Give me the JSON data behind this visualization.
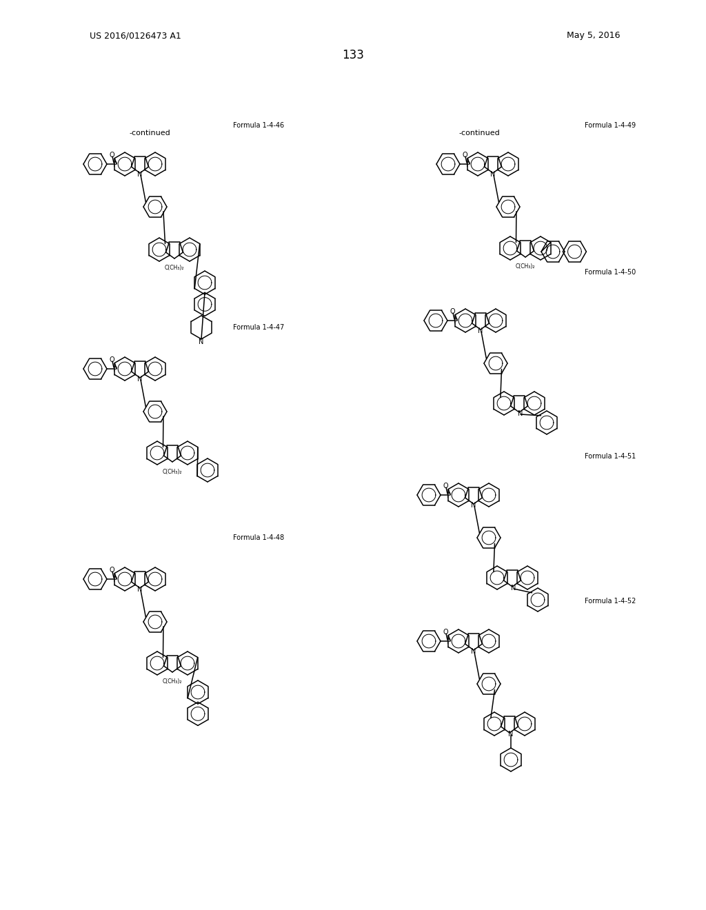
{
  "page_number": "133",
  "patent_number": "US 2016/0126473 A1",
  "date": "May 5, 2016",
  "background_color": "#ffffff",
  "text_color": "#000000",
  "line_color": "#000000",
  "formula_labels": [
    "Formula 1-4-46",
    "Formula 1-4-47",
    "Formula 1-4-48",
    "Formula 1-4-49",
    "Formula 1-4-50",
    "Formula 1-4-51",
    "Formula 1-4-52"
  ]
}
